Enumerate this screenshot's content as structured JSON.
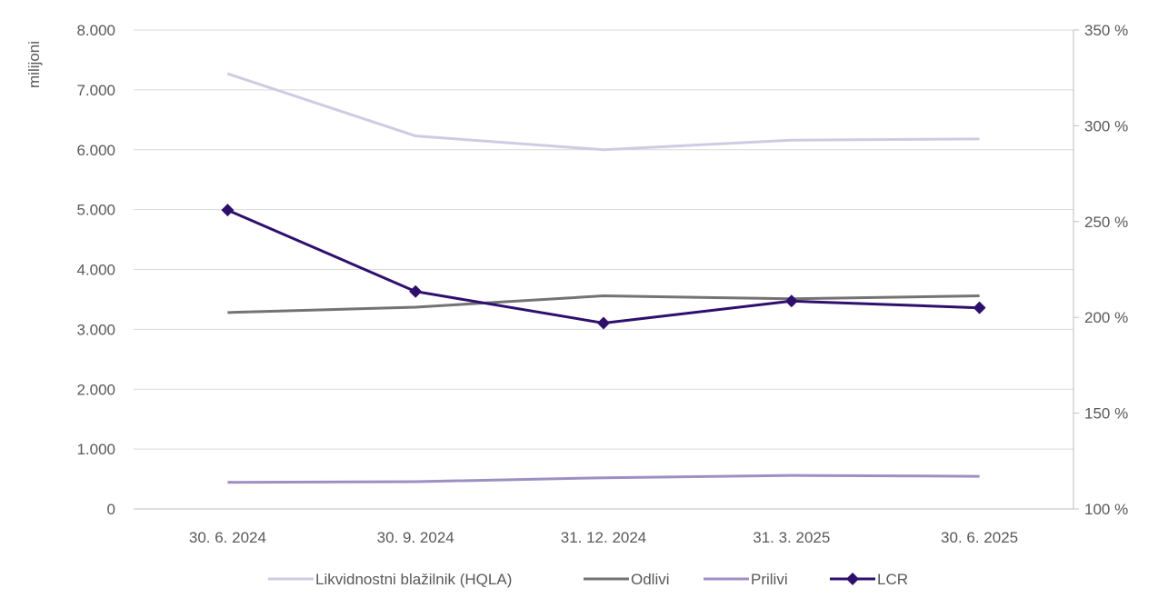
{
  "chart_data": {
    "type": "line",
    "categories": [
      "30. 6. 2024",
      "30. 9. 2024",
      "31. 12. 2024",
      "31. 3. 2025",
      "30. 6. 2025"
    ],
    "series": [
      {
        "name": "Likvidnostni blažilnik (HQLA)",
        "axis": "left",
        "color": "#cfcbe3",
        "marker": false,
        "values": [
          7270,
          6230,
          6000,
          6160,
          6180
        ]
      },
      {
        "name": "Odlivi",
        "axis": "left",
        "color": "#737373",
        "marker": false,
        "values": [
          3280,
          3370,
          3560,
          3510,
          3560
        ]
      },
      {
        "name": "Prilivi",
        "axis": "left",
        "color": "#9d8fc4",
        "marker": false,
        "values": [
          445,
          455,
          520,
          560,
          545
        ]
      },
      {
        "name": "LCR",
        "axis": "right",
        "color": "#2e0f6e",
        "marker": true,
        "values": [
          256,
          213.5,
          197,
          208.5,
          205
        ]
      }
    ],
    "y_left": {
      "label": "milijoni",
      "ylim": [
        0,
        8000
      ],
      "ticks": [
        0,
        1000,
        2000,
        3000,
        4000,
        5000,
        6000,
        7000,
        8000
      ],
      "tick_labels": [
        "0",
        "1.000",
        "2.000",
        "3.000",
        "4.000",
        "5.000",
        "6.000",
        "7.000",
        "8.000"
      ]
    },
    "y_right": {
      "ylim": [
        100,
        350
      ],
      "ticks": [
        100,
        150,
        200,
        250,
        300,
        350
      ],
      "tick_labels": [
        "100 %",
        "150 %",
        "200 %",
        "250 %",
        "300 %",
        "350 %"
      ]
    },
    "grid": true,
    "legend": "bottom"
  }
}
